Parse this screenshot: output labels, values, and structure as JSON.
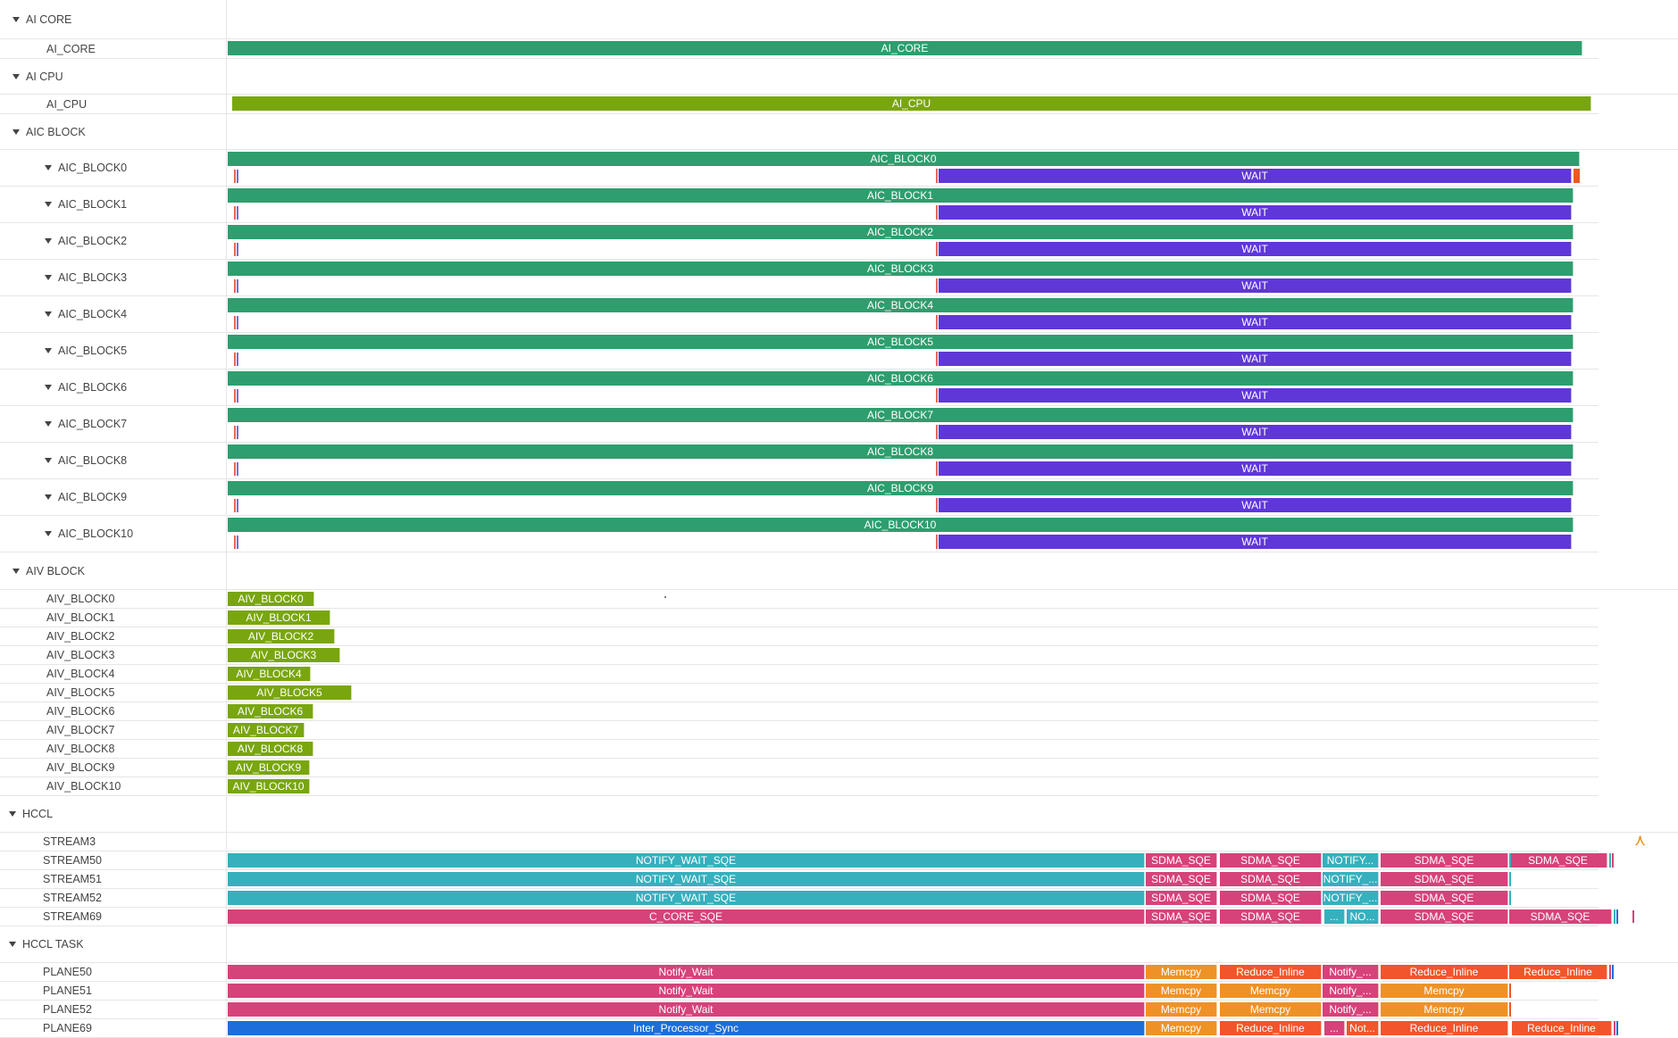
{
  "colors": {
    "green": "#2e9e6e",
    "olive": "#79a60f",
    "purple": "#5f37d8",
    "teal": "#36b0bd",
    "magenta": "#d6427a",
    "orange": "#ee9227",
    "redorange": "#f2552b",
    "blue": "#1d6ed8",
    "tick_red": "#e8665a",
    "tick_blue": "#7a6bd8"
  },
  "groups": [
    {
      "id": "ai-core",
      "label": "AI CORE"
    },
    {
      "id": "ai-cpu",
      "label": "AI CPU"
    },
    {
      "id": "aic-block",
      "label": "AIC BLOCK"
    },
    {
      "id": "aiv-block",
      "label": "AIV BLOCK"
    },
    {
      "id": "hccl",
      "label": "HCCL"
    },
    {
      "id": "hccl-task",
      "label": "HCCL TASK"
    }
  ],
  "rows": {
    "ai_core": {
      "label": "AI_CORE",
      "bar": "AI_CORE"
    },
    "ai_cpu": {
      "label": "AI_CPU",
      "bar": "AI_CPU"
    },
    "wait_label": "WAIT",
    "aic_blocks": [
      {
        "label": "AIC_BLOCK0",
        "bar": "AIC_BLOCK0"
      },
      {
        "label": "AIC_BLOCK1",
        "bar": "AIC_BLOCK1"
      },
      {
        "label": "AIC_BLOCK2",
        "bar": "AIC_BLOCK2"
      },
      {
        "label": "AIC_BLOCK3",
        "bar": "AIC_BLOCK3"
      },
      {
        "label": "AIC_BLOCK4",
        "bar": "AIC_BLOCK4"
      },
      {
        "label": "AIC_BLOCK5",
        "bar": "AIC_BLOCK5"
      },
      {
        "label": "AIC_BLOCK6",
        "bar": "AIC_BLOCK6"
      },
      {
        "label": "AIC_BLOCK7",
        "bar": "AIC_BLOCK7"
      },
      {
        "label": "AIC_BLOCK8",
        "bar": "AIC_BLOCK8"
      },
      {
        "label": "AIC_BLOCK9",
        "bar": "AIC_BLOCK9"
      },
      {
        "label": "AIC_BLOCK10",
        "bar": "AIC_BLOCK10"
      }
    ],
    "aiv_blocks": [
      {
        "label": "AIV_BLOCK0",
        "bar": "AIV_BLOCK0"
      },
      {
        "label": "AIV_BLOCK1",
        "bar": "AIV_BLOCK1"
      },
      {
        "label": "AIV_BLOCK2",
        "bar": "AIV_BLOCK2"
      },
      {
        "label": "AIV_BLOCK3",
        "bar": "AIV_BLOCK3"
      },
      {
        "label": "AIV_BLOCK4",
        "bar": "AIV_BLOCK4"
      },
      {
        "label": "AIV_BLOCK5",
        "bar": "AIV_BLOCK5"
      },
      {
        "label": "AIV_BLOCK6",
        "bar": "AIV_BLOCK6"
      },
      {
        "label": "AIV_BLOCK7",
        "bar": "AIV_BLOCK7"
      },
      {
        "label": "AIV_BLOCK8",
        "bar": "AIV_BLOCK8"
      },
      {
        "label": "AIV_BLOCK9",
        "bar": "AIV_BLOCK9"
      },
      {
        "label": "AIV_BLOCK10",
        "bar": "AIV_BLOCK10"
      }
    ],
    "streams": [
      {
        "label": "STREAM3",
        "bars": []
      },
      {
        "label": "STREAM50",
        "bars": [
          "NOTIFY_WAIT_SQE",
          "SDMA_SQE",
          "SDMA_SQE",
          "NOTIFY...",
          "SDMA_SQE",
          "SDMA_SQE"
        ]
      },
      {
        "label": "STREAM51",
        "bars": [
          "NOTIFY_WAIT_SQE",
          "SDMA_SQE",
          "SDMA_SQE",
          "NOTIFY_...",
          "SDMA_SQE"
        ]
      },
      {
        "label": "STREAM52",
        "bars": [
          "NOTIFY_WAIT_SQE",
          "SDMA_SQE",
          "SDMA_SQE",
          "NOTIFY_...",
          "SDMA_SQE"
        ]
      },
      {
        "label": "STREAM69",
        "bars": [
          "C_CORE_SQE",
          "SDMA_SQE",
          "SDMA_SQE",
          "...",
          "NO...",
          "SDMA_SQE",
          "SDMA_SQE"
        ]
      }
    ],
    "planes": [
      {
        "label": "PLANE50",
        "bars": [
          "Notify_Wait",
          "Memcpy",
          "Reduce_Inline",
          "Notify_...",
          "Reduce_Inline",
          "Reduce_Inline"
        ]
      },
      {
        "label": "PLANE51",
        "bars": [
          "Notify_Wait",
          "Memcpy",
          "Memcpy",
          "Notify_...",
          "Memcpy"
        ]
      },
      {
        "label": "PLANE52",
        "bars": [
          "Notify_Wait",
          "Memcpy",
          "Memcpy",
          "Notify_...",
          "Memcpy"
        ]
      },
      {
        "label": "PLANE69",
        "bars": [
          "Inter_Processor_Sync",
          "Memcpy",
          "Reduce_Inline",
          "...",
          "Not...",
          "Reduce_Inline",
          "Reduce_Inline"
        ]
      }
    ]
  }
}
